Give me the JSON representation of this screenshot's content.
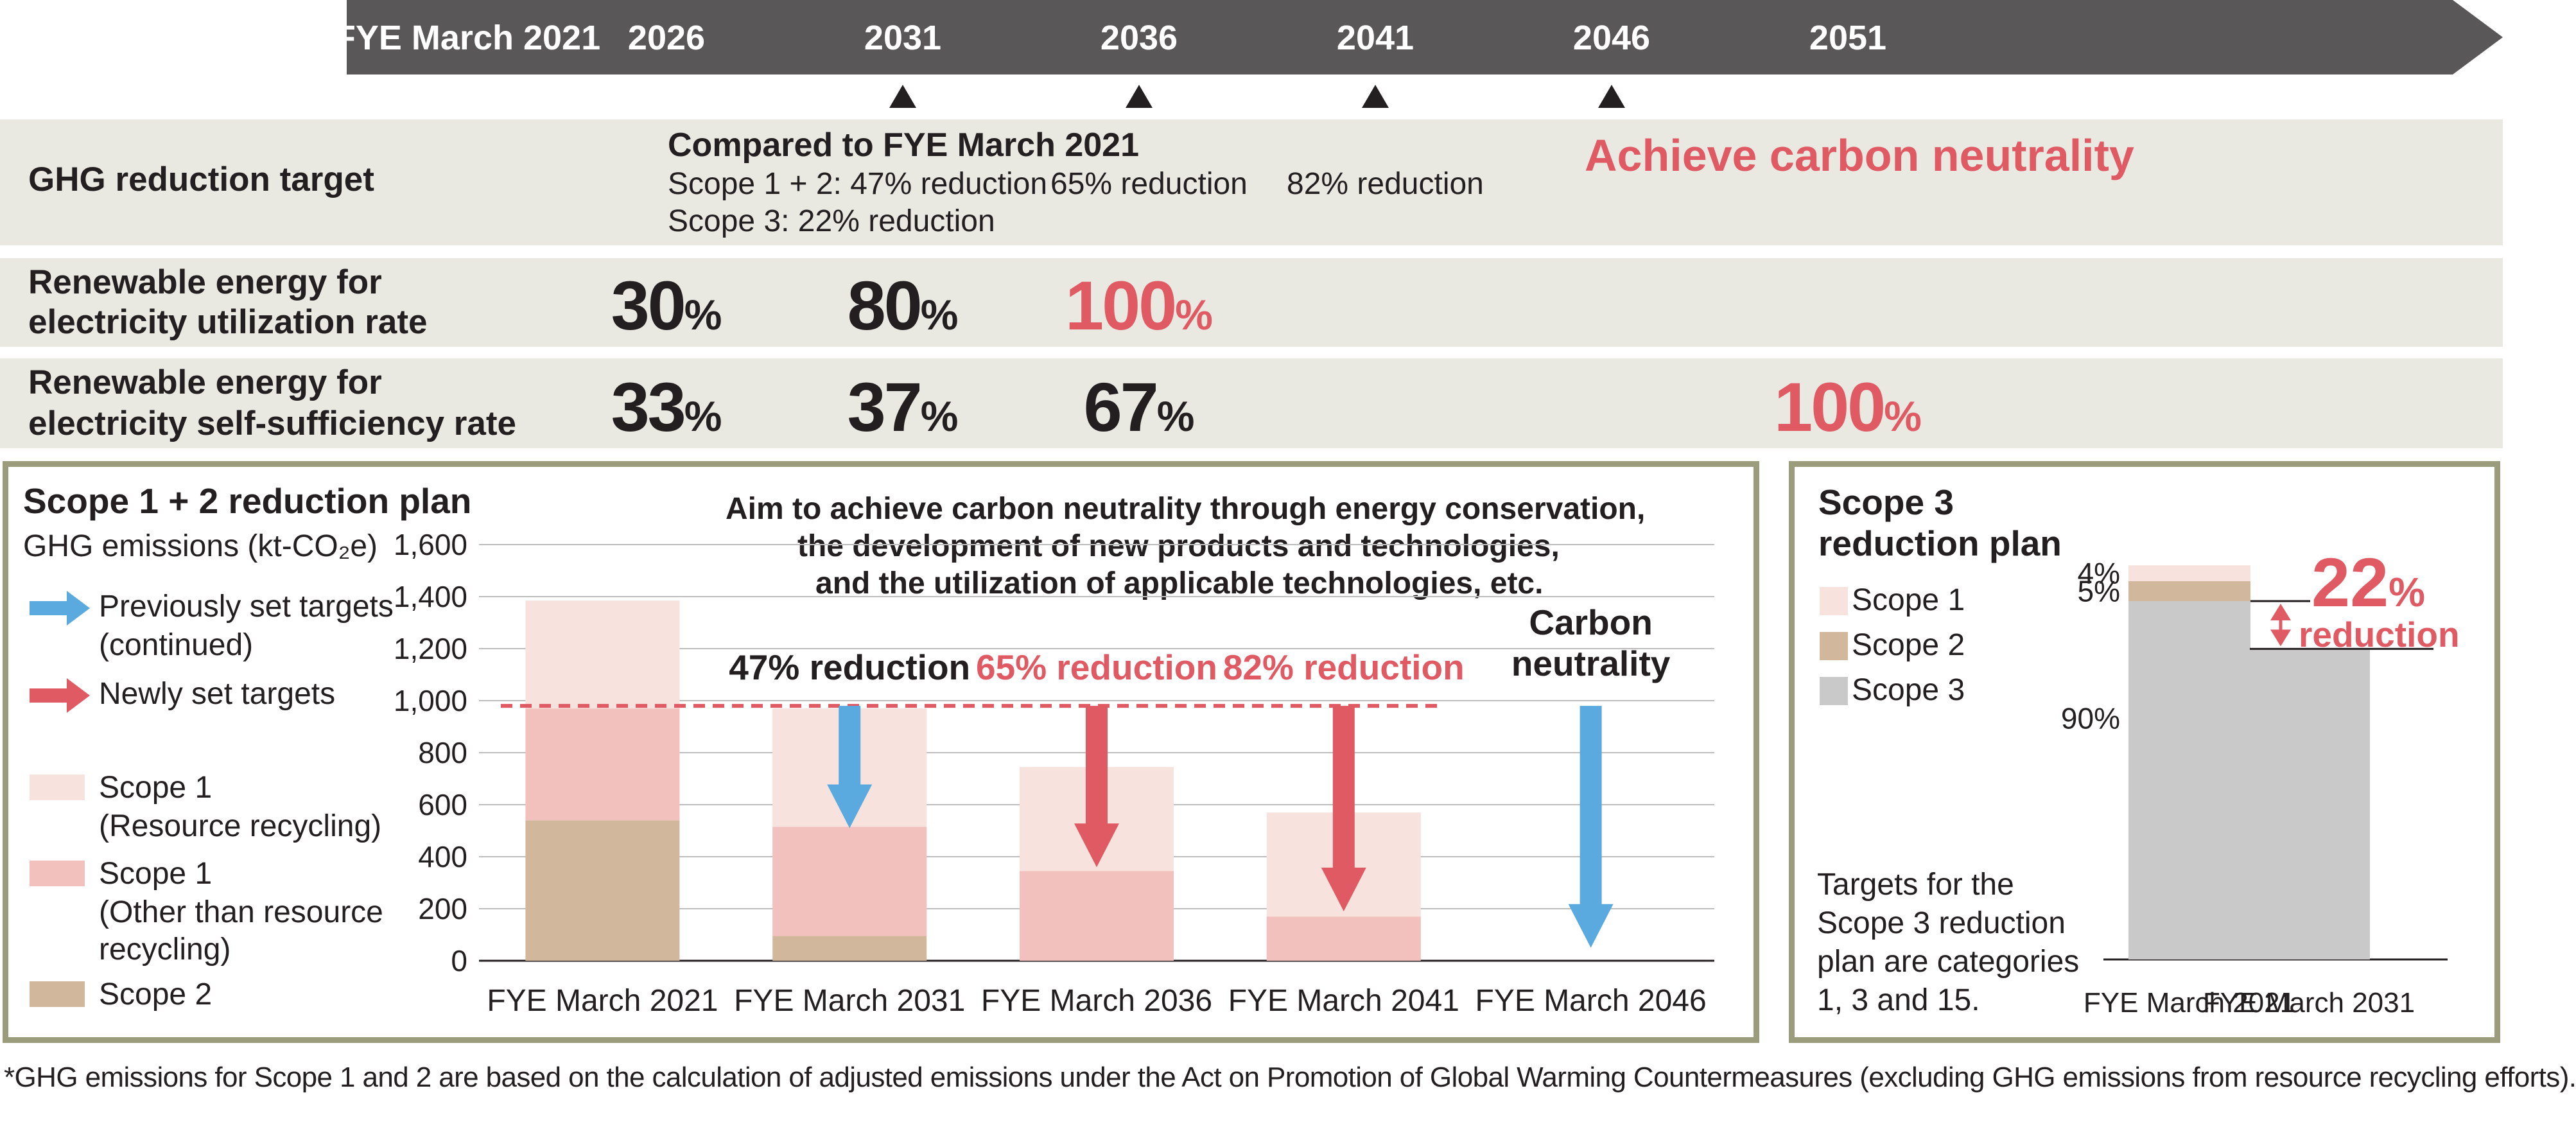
{
  "timeline": {
    "years": [
      "FYE March 2021",
      "2026",
      "2031",
      "2036",
      "2041",
      "2046",
      "2051"
    ]
  },
  "ghg_target": {
    "label": "GHG reduction target",
    "compared": "Compared to FYE March 2021",
    "scope12_2031": "Scope 1 + 2: 47% reduction",
    "scope3_2031": "Scope 3: 22% reduction",
    "t2036": "65% reduction",
    "t2041": "82% reduction",
    "neutrality": "Achieve carbon neutrality"
  },
  "util_rate": {
    "label_line1": "Renewable energy for",
    "label_line2": "electricity utilization rate",
    "v2026": "30",
    "v2031": "80",
    "v2036": "100",
    "unit": "%"
  },
  "self_rate": {
    "label_line1": "Renewable energy for",
    "label_line2": "electricity self-sufficiency rate",
    "v2026": "33",
    "v2031": "37",
    "v2036": "67",
    "v2051": "100",
    "unit": "%"
  },
  "scope12_panel": {
    "title": "Scope 1 + 2 reduction plan",
    "unit_label": "GHG emissions (kt-CO₂e)",
    "legend_prev_1": "Previously set targets",
    "legend_prev_2": "(continued)",
    "legend_new": "Newly set targets",
    "legend_s1rr_1": "Scope 1",
    "legend_s1rr_2": "(Resource recycling)",
    "legend_s1o_1": "Scope 1",
    "legend_s1o_2": "(Other than resource",
    "legend_s1o_3": "recycling)",
    "legend_s2": "Scope 2",
    "aim_1": "Aim to achieve carbon neutrality through energy conservation,",
    "aim_2": "the development of new products and technologies,",
    "aim_3": "and the utilization of applicable technologies, etc.",
    "colors": {
      "scope1_rr": "#f7e2de",
      "scope1_other": "#f2c0bd",
      "scope2": "#d1b89c",
      "prev_arrow": "#5aaadf",
      "new_arrow": "#e05a64"
    }
  },
  "scope3_panel": {
    "title_1": "Scope 3",
    "title_2": "reduction plan",
    "legend_s1": "Scope 1",
    "legend_s2": "Scope 2",
    "legend_s3": "Scope 3",
    "note_1": "Targets for the",
    "note_2": "Scope 3 reduction",
    "note_3": "plan are categories",
    "note_4": "1, 3 and 15.",
    "reduction_value": "22",
    "reduction_unit": "%",
    "reduction_label": "reduction",
    "colors": {
      "scope1": "#f7e2de",
      "scope2": "#d1b89c",
      "scope3": "#c9c9c9"
    }
  },
  "footnote": "*GHG emissions for Scope 1 and 2 are based on the calculation of adjusted emissions under the Act on Promotion of Global Warming Countermeasures (excluding GHG emissions from resource recycling efforts).",
  "chart_data": [
    {
      "type": "bar",
      "title": "Scope 1 + 2 reduction plan",
      "ylabel": "GHG emissions (kt-CO₂e)",
      "ylim": [
        0,
        1600
      ],
      "yticks": [
        "0",
        "200",
        "400",
        "600",
        "800",
        "1,000",
        "1,200",
        "1,400",
        "1,600"
      ],
      "categories": [
        "FYE March 2021",
        "FYE March 2031",
        "FYE March 2036",
        "FYE March 2041",
        "FYE March 2046"
      ],
      "series": [
        {
          "name": "Scope 2",
          "values": [
            540,
            95,
            0,
            0,
            0
          ]
        },
        {
          "name": "Scope 1 (Other than resource recycling)",
          "values": [
            430,
            420,
            345,
            170,
            0
          ]
        },
        {
          "name": "Scope 1 (Resource recycling)",
          "values": [
            415,
            455,
            400,
            400,
            0
          ]
        }
      ],
      "dashed_line_value": 980,
      "annotations": [
        {
          "category": "FYE March 2031",
          "text": "47% reduction",
          "arrow": "previous",
          "arrow_to": 510
        },
        {
          "category": "FYE March 2036",
          "text": "65% reduction",
          "arrow": "new",
          "arrow_to": 360
        },
        {
          "category": "FYE March 2041",
          "text": "82% reduction",
          "arrow": "new",
          "arrow_to": 190
        },
        {
          "category": "FYE March 2046",
          "text_1": "Carbon",
          "text_2": "neutrality",
          "arrow": "previous",
          "arrow_to": 50
        }
      ],
      "grid": true
    },
    {
      "type": "bar",
      "title": "Scope 3 reduction plan",
      "categories": [
        "FYE March 2021",
        "FYE March 2031"
      ],
      "series": [
        {
          "name": "Scope 3",
          "values": [
            90,
            78
          ]
        },
        {
          "name": "Scope 2",
          "values": [
            5,
            0
          ]
        },
        {
          "name": "Scope 1",
          "values": [
            4,
            0
          ]
        }
      ],
      "segment_labels": [
        "4%",
        "5%",
        "90%"
      ]
    }
  ]
}
